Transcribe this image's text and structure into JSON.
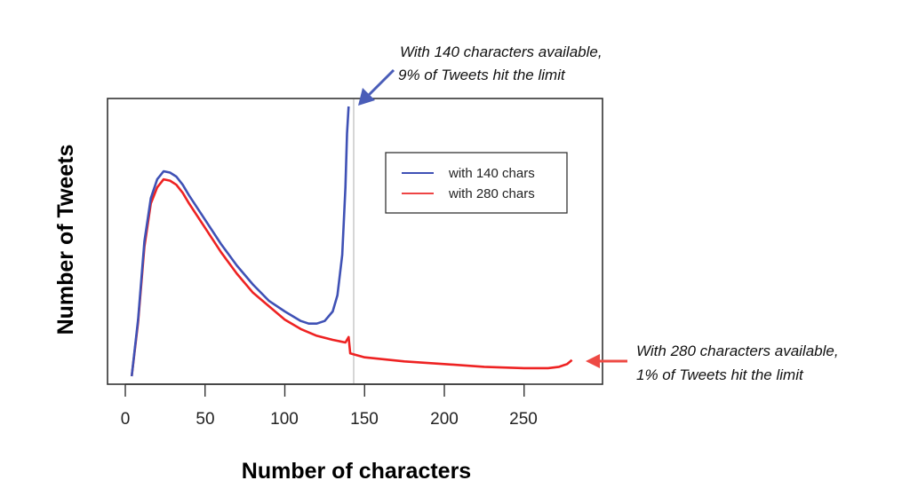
{
  "chart_data": {
    "type": "line",
    "title": "",
    "xlabel": "Number of characters",
    "ylabel": "Number of Tweets",
    "xlim": [
      0,
      290
    ],
    "x_ticks": [
      0,
      50,
      100,
      150,
      200,
      250
    ],
    "x_tick_labels": [
      "0",
      "50",
      "100",
      "150",
      "200",
      "250"
    ],
    "y_ticks": [],
    "grid": false,
    "legend_position": "upper right (inside plot)",
    "reference_line": {
      "x": 140,
      "color": "#c8c8c8"
    },
    "series": [
      {
        "name": "with 140 chars",
        "color": "#3f51b5",
        "x": [
          4,
          8,
          12,
          16,
          20,
          24,
          28,
          32,
          36,
          40,
          50,
          60,
          70,
          80,
          90,
          100,
          110,
          115,
          120,
          125,
          130,
          133,
          136,
          138,
          139,
          140
        ],
        "y": [
          0.0,
          0.21,
          0.5,
          0.66,
          0.73,
          0.76,
          0.755,
          0.74,
          0.71,
          0.67,
          0.58,
          0.49,
          0.41,
          0.34,
          0.28,
          0.24,
          0.205,
          0.195,
          0.195,
          0.205,
          0.24,
          0.3,
          0.45,
          0.7,
          0.9,
          1.0
        ]
      },
      {
        "name": "with 280 chars",
        "color": "#ee2222",
        "x": [
          4,
          8,
          12,
          16,
          20,
          24,
          28,
          32,
          36,
          40,
          50,
          60,
          70,
          80,
          90,
          100,
          110,
          120,
          130,
          138,
          140,
          141,
          150,
          175,
          200,
          225,
          250,
          265,
          272,
          277,
          280
        ],
        "y": [
          0.0,
          0.2,
          0.48,
          0.64,
          0.7,
          0.73,
          0.725,
          0.71,
          0.68,
          0.64,
          0.55,
          0.46,
          0.38,
          0.31,
          0.26,
          0.21,
          0.175,
          0.15,
          0.135,
          0.125,
          0.145,
          0.085,
          0.07,
          0.055,
          0.045,
          0.035,
          0.03,
          0.03,
          0.035,
          0.045,
          0.06
        ]
      }
    ],
    "annotations": [
      {
        "text": "With 140 characters available, 9% of Tweets hit the limit",
        "points_to": {
          "x": 140,
          "series": "with 140 chars"
        },
        "arrow_color": "#4a5db8"
      },
      {
        "text": "With 280 characters available, 1% of Tweets hit the limit",
        "points_to": {
          "x": 280,
          "series": "with 280 chars"
        },
        "arrow_color": "#ee4a44"
      }
    ]
  },
  "axes": {
    "xlabel": "Number of characters",
    "ylabel": "Number of Tweets",
    "x_tick_labels": [
      "0",
      "50",
      "100",
      "150",
      "200",
      "250"
    ]
  },
  "legend": {
    "items": [
      {
        "label": "with 140 chars",
        "color": "#3f51b5"
      },
      {
        "label": "with 280 chars",
        "color": "#ee2222"
      }
    ]
  },
  "annotations": {
    "top": {
      "line1": "With 140 characters available,",
      "line2": "9% of Tweets hit the limit"
    },
    "right": {
      "line1": "With 280 characters available,",
      "line2": "1% of Tweets hit the limit"
    }
  }
}
